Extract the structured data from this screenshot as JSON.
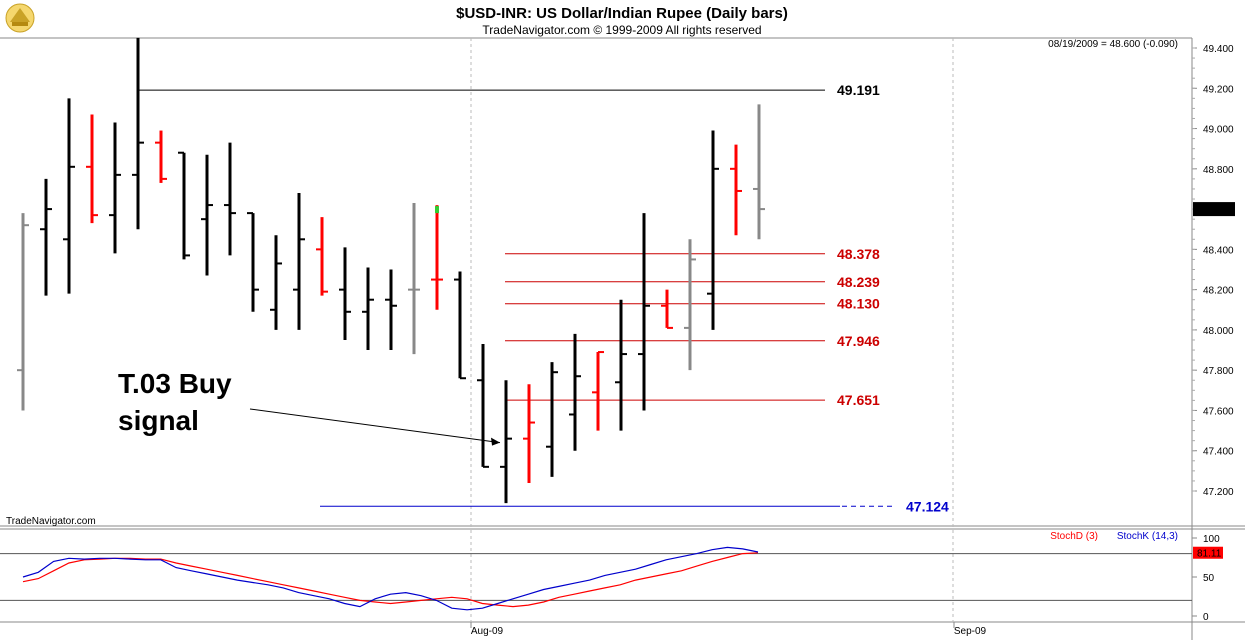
{
  "header": {
    "title": "$USD-INR:  US Dollar/Indian Rupee  (Daily bars)",
    "subtitle": "TradeNavigator.com © 1999-2009 All rights reserved",
    "readout": "08/19/2009 = 48.600 (-0.090)",
    "watermark": "TradeNavigator.com"
  },
  "colors": {
    "up": "#000000",
    "down": "#ff0000",
    "neutral": "#888888",
    "high_level": "#000000",
    "fib_levels": "#cc0000",
    "support": "#0000cc",
    "stoch_d": "#ff0000",
    "stoch_k": "#0000cc"
  },
  "chart_data": [
    {
      "type": "ohlc",
      "title": "$USD-INR:  US Dollar/Indian Rupee  (Daily bars)",
      "ylim": [
        47.1,
        49.45
      ],
      "yticks": [
        "49.400",
        "49.200",
        "49.000",
        "48.800",
        "48.600",
        "48.400",
        "48.200",
        "48.000",
        "47.800",
        "47.600",
        "47.400",
        "47.200"
      ],
      "xticks": [
        "Aug-09",
        "Sep-09"
      ],
      "last_price_label": "48.600",
      "bars": [
        {
          "o": 47.8,
          "h": 48.58,
          "l": 47.6,
          "c": 48.52,
          "dir": "neutral"
        },
        {
          "o": 48.5,
          "h": 48.75,
          "l": 48.17,
          "c": 48.6,
          "dir": "up"
        },
        {
          "o": 48.45,
          "h": 49.15,
          "l": 48.18,
          "c": 48.81,
          "dir": "up"
        },
        {
          "o": 48.81,
          "h": 49.07,
          "l": 48.53,
          "c": 48.57,
          "dir": "down"
        },
        {
          "o": 48.57,
          "h": 49.03,
          "l": 48.38,
          "c": 48.77,
          "dir": "up"
        },
        {
          "o": 48.77,
          "h": 49.45,
          "l": 48.5,
          "c": 48.93,
          "dir": "up"
        },
        {
          "o": 48.93,
          "h": 48.99,
          "l": 48.73,
          "c": 48.75,
          "dir": "down"
        },
        {
          "o": 48.88,
          "h": 48.88,
          "l": 48.35,
          "c": 48.37,
          "dir": "up"
        },
        {
          "o": 48.55,
          "h": 48.87,
          "l": 48.27,
          "c": 48.62,
          "dir": "up"
        },
        {
          "o": 48.62,
          "h": 48.93,
          "l": 48.37,
          "c": 48.58,
          "dir": "up"
        },
        {
          "o": 48.58,
          "h": 48.58,
          "l": 48.09,
          "c": 48.2,
          "dir": "up"
        },
        {
          "o": 48.1,
          "h": 48.47,
          "l": 48.0,
          "c": 48.33,
          "dir": "up"
        },
        {
          "o": 48.2,
          "h": 48.68,
          "l": 48.0,
          "c": 48.45,
          "dir": "up"
        },
        {
          "o": 48.4,
          "h": 48.56,
          "l": 48.17,
          "c": 48.19,
          "dir": "down"
        },
        {
          "o": 48.2,
          "h": 48.41,
          "l": 47.95,
          "c": 48.09,
          "dir": "up"
        },
        {
          "o": 48.09,
          "h": 48.31,
          "l": 47.9,
          "c": 48.15,
          "dir": "up"
        },
        {
          "o": 48.15,
          "h": 48.3,
          "l": 47.9,
          "c": 48.12,
          "dir": "up"
        },
        {
          "o": 48.2,
          "h": 48.63,
          "l": 47.88,
          "c": 48.2,
          "dir": "neutral"
        },
        {
          "o": 48.25,
          "h": 48.62,
          "l": 48.1,
          "c": 48.25,
          "dir": "down"
        },
        {
          "o": 48.25,
          "h": 48.29,
          "l": 47.76,
          "c": 47.76,
          "dir": "up"
        },
        {
          "o": 47.75,
          "h": 47.93,
          "l": 47.32,
          "c": 47.32,
          "dir": "up"
        },
        {
          "o": 47.32,
          "h": 47.75,
          "l": 47.14,
          "c": 47.46,
          "dir": "up"
        },
        {
          "o": 47.46,
          "h": 47.73,
          "l": 47.24,
          "c": 47.54,
          "dir": "down"
        },
        {
          "o": 47.42,
          "h": 47.84,
          "l": 47.27,
          "c": 47.79,
          "dir": "up"
        },
        {
          "o": 47.58,
          "h": 47.98,
          "l": 47.4,
          "c": 47.77,
          "dir": "up"
        },
        {
          "o": 47.69,
          "h": 47.89,
          "l": 47.5,
          "c": 47.89,
          "dir": "down"
        },
        {
          "o": 47.74,
          "h": 48.15,
          "l": 47.5,
          "c": 47.88,
          "dir": "up"
        },
        {
          "o": 47.88,
          "h": 48.58,
          "l": 47.6,
          "c": 48.12,
          "dir": "up"
        },
        {
          "o": 48.12,
          "h": 48.2,
          "l": 48.01,
          "c": 48.01,
          "dir": "down"
        },
        {
          "o": 48.01,
          "h": 48.45,
          "l": 47.8,
          "c": 48.35,
          "dir": "neutral"
        },
        {
          "o": 48.18,
          "h": 48.99,
          "l": 48.0,
          "c": 48.8,
          "dir": "up"
        },
        {
          "o": 48.8,
          "h": 48.92,
          "l": 48.47,
          "c": 48.69,
          "dir": "down"
        },
        {
          "o": 48.7,
          "h": 49.12,
          "l": 48.45,
          "c": 48.6,
          "dir": "neutral"
        }
      ],
      "levels": [
        {
          "value": 49.191,
          "label": "49.191",
          "kind": "high"
        },
        {
          "value": 48.378,
          "label": "48.378",
          "kind": "fib"
        },
        {
          "value": 48.239,
          "label": "48.239",
          "kind": "fib"
        },
        {
          "value": 48.13,
          "label": "48.130",
          "kind": "fib"
        },
        {
          "value": 47.946,
          "label": "47.946",
          "kind": "fib"
        },
        {
          "value": 47.651,
          "label": "47.651",
          "kind": "fib"
        },
        {
          "value": 47.124,
          "label": "47.124",
          "kind": "support"
        }
      ],
      "annotation": {
        "lines": [
          "T.03 Buy",
          "signal"
        ],
        "target_bar": 21,
        "target_value": 47.44
      },
      "green_mark": {
        "bar": 18,
        "value": 48.6
      }
    },
    {
      "type": "line",
      "title": "Stochastic",
      "ylim": [
        0,
        100
      ],
      "yticks": [
        "100",
        "50",
        "0"
      ],
      "ref_lines": [
        80,
        20
      ],
      "last_value_label": "81.11",
      "series": [
        {
          "name": "StochD (3)",
          "values": [
            44,
            48,
            58,
            68,
            72,
            73,
            74,
            74,
            73,
            73,
            68,
            64,
            60,
            56,
            52,
            48,
            44,
            40,
            36,
            32,
            28,
            24,
            20,
            18,
            16,
            18,
            20,
            22,
            24,
            22,
            16,
            14,
            12,
            14,
            18,
            24,
            28,
            32,
            36,
            40,
            46,
            50,
            54,
            58,
            64,
            70,
            75,
            80,
            81
          ]
        },
        {
          "name": "StochK (14,3)",
          "values": [
            50,
            56,
            70,
            74,
            73,
            74,
            74,
            73,
            72,
            72,
            62,
            58,
            54,
            50,
            46,
            43,
            40,
            36,
            30,
            26,
            22,
            16,
            12,
            22,
            28,
            30,
            26,
            20,
            10,
            8,
            10,
            16,
            22,
            28,
            34,
            38,
            42,
            46,
            52,
            56,
            60,
            66,
            72,
            76,
            80,
            85,
            88,
            86,
            82
          ]
        }
      ]
    }
  ]
}
